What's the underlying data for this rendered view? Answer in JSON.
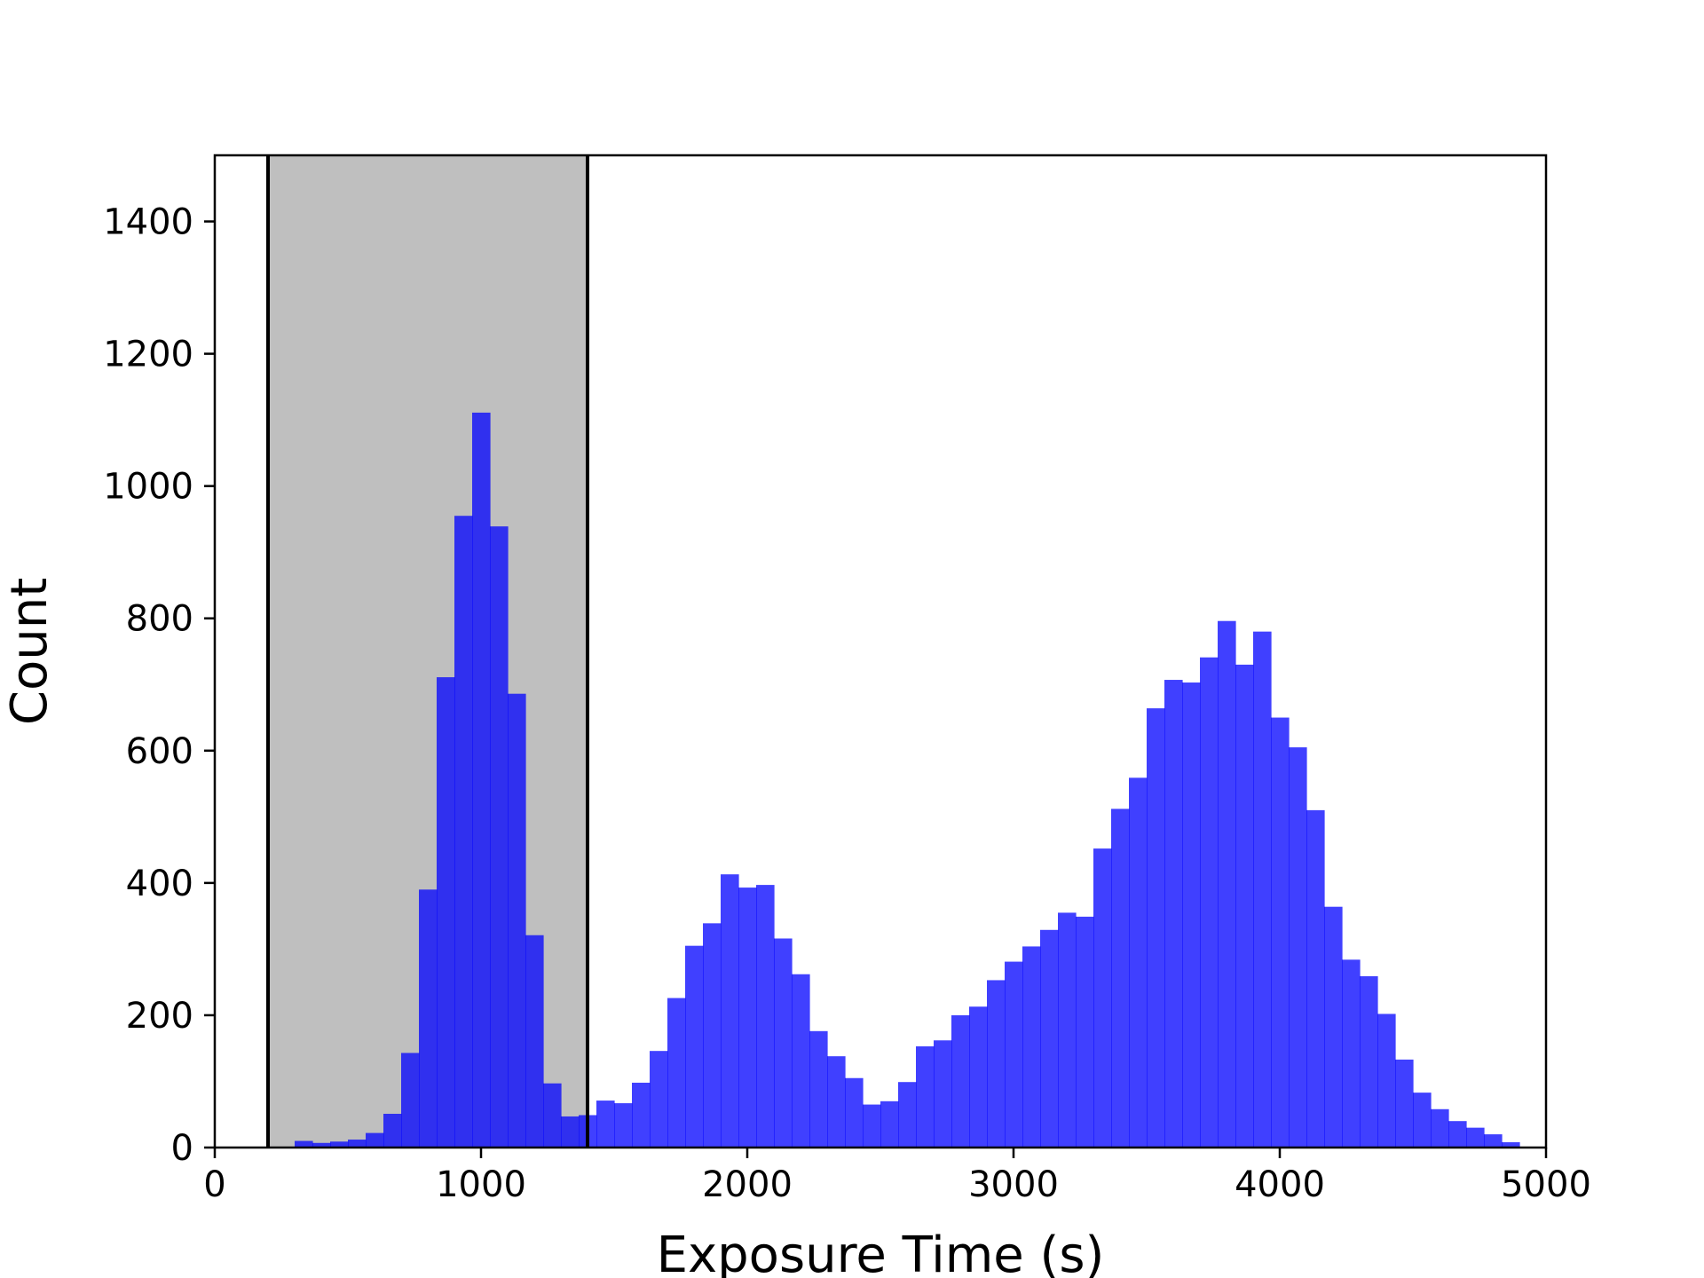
{
  "chart_data": {
    "type": "bar",
    "xlabel": "Exposure Time (s)",
    "ylabel": "Count",
    "xlim": [
      0,
      5000
    ],
    "ylim": [
      0,
      1500
    ],
    "xticks": [
      0,
      1000,
      2000,
      3000,
      4000,
      5000
    ],
    "yticks": [
      0,
      200,
      400,
      600,
      800,
      1000,
      1200,
      1400
    ],
    "grid": false,
    "bar_color": "#0000ff",
    "bin_width": 66.667,
    "bin_start": 300,
    "values": [
      10,
      7,
      9,
      12,
      22,
      51,
      143,
      390,
      711,
      955,
      1111,
      939,
      686,
      321,
      97,
      47,
      49,
      71,
      67,
      98,
      146,
      226,
      305,
      339,
      413,
      393,
      397,
      316,
      262,
      176,
      138,
      105,
      65,
      70,
      99,
      153,
      162,
      200,
      213,
      253,
      281,
      304,
      329,
      355,
      349,
      452,
      512,
      559,
      664,
      707,
      703,
      741,
      796,
      730,
      780,
      650,
      605,
      510,
      364,
      284,
      259,
      202,
      133,
      83,
      58,
      40,
      30,
      20,
      8
    ],
    "shaded_region": {
      "x": [
        200,
        1400
      ],
      "color": "#bfbfbf"
    }
  }
}
